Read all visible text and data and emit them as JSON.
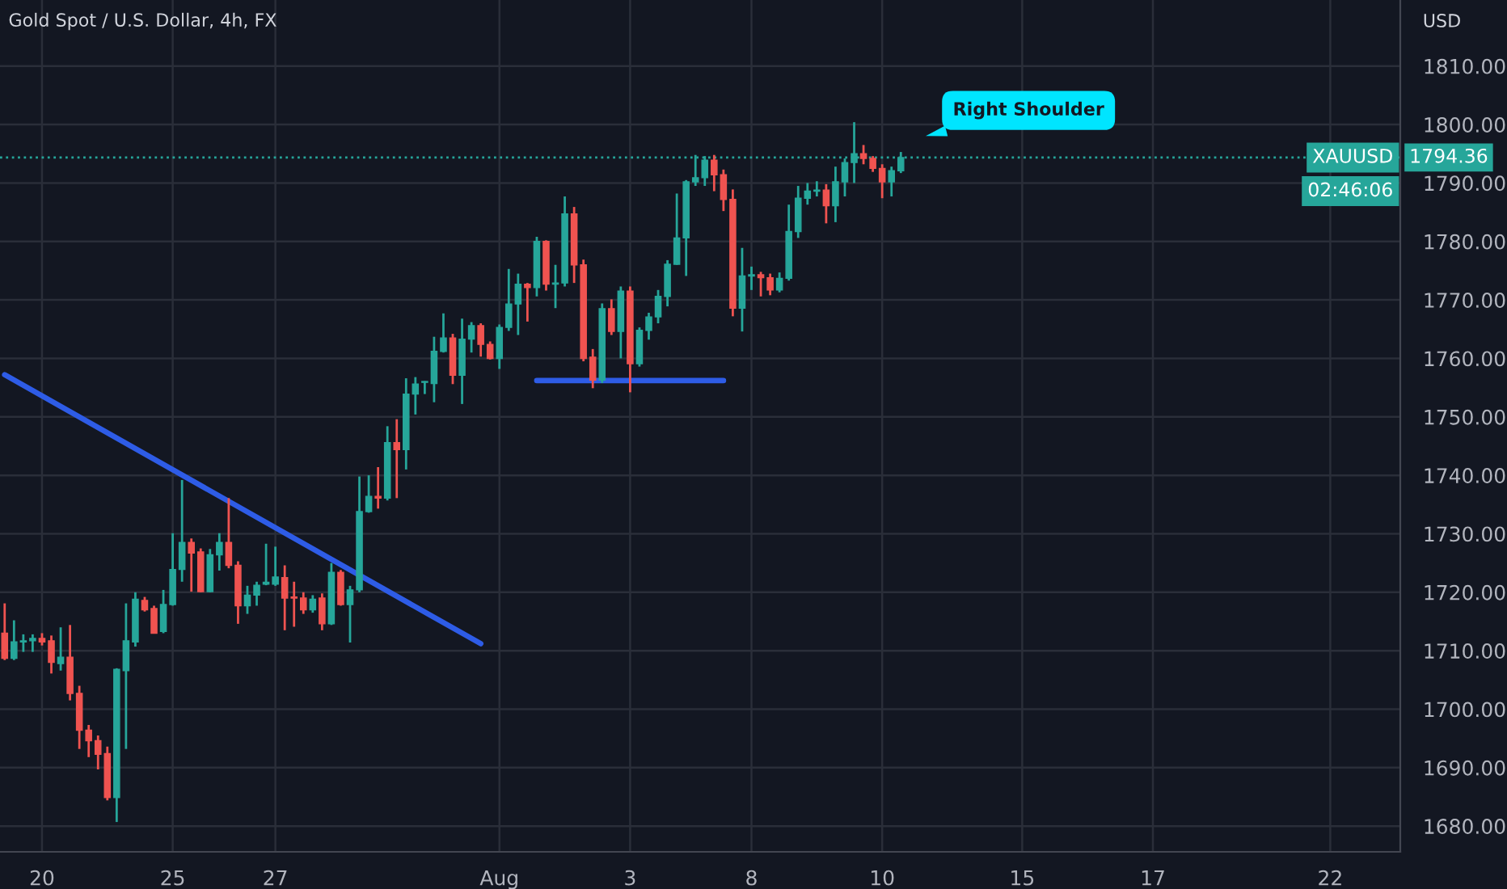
{
  "chart_data": {
    "type": "candlestick",
    "title": "Gold Spot / U.S. Dollar, 4h, FX",
    "ylabel": "USD",
    "categories": [
      null,
      null,
      null,
      null,
      "20",
      null,
      null,
      null,
      null,
      null,
      null,
      null,
      null,
      null,
      null,
      null,
      null,
      null,
      "25",
      null,
      null,
      null,
      null,
      null,
      null,
      null,
      null,
      null,
      null,
      "27",
      null,
      null,
      null,
      null,
      null,
      null,
      null,
      null,
      null,
      null,
      null,
      null,
      null,
      null,
      null,
      null,
      null,
      null,
      null,
      null,
      null,
      null,
      null,
      "Aug",
      null,
      null,
      null,
      null,
      null,
      null,
      null,
      null,
      null,
      null,
      null,
      null,
      null,
      "3",
      null,
      null,
      null,
      null,
      null,
      null,
      null,
      null,
      null,
      null,
      null,
      null,
      "8",
      null,
      null,
      null,
      null,
      null,
      null,
      null,
      null,
      null,
      null,
      null,
      null,
      null,
      "10",
      null,
      null,
      null,
      null,
      null,
      null,
      null,
      null,
      null,
      null,
      null,
      null,
      null,
      null,
      "15",
      null,
      null,
      null,
      null,
      null,
      null,
      null,
      null,
      null,
      null,
      null,
      null,
      null,
      "17",
      null,
      null,
      null,
      null,
      null,
      null,
      null,
      null,
      null,
      null,
      null,
      null,
      null,
      null,
      null,
      null,
      null,
      null,
      "22",
      null,
      null,
      null,
      null,
      null,
      null,
      null
    ],
    "ohlc": [
      [
        1713.0,
        1718.1,
        1708.4,
        1708.7
      ],
      [
        1708.7,
        1715.2,
        1708.4,
        1711.5
      ],
      [
        1711.5,
        1712.8,
        1709.8,
        1711.7
      ],
      [
        1711.7,
        1712.8,
        1709.8,
        1712.1
      ],
      [
        1712.1,
        1713.0,
        1710.9,
        1711.5
      ],
      [
        1711.7,
        1712.6,
        1706.1,
        1708.0
      ],
      [
        1707.8,
        1714.0,
        1706.6,
        1708.9
      ],
      [
        1708.9,
        1714.4,
        1701.5,
        1702.7
      ],
      [
        1702.7,
        1704.0,
        1693.2,
        1696.4
      ],
      [
        1696.4,
        1697.3,
        1691.8,
        1694.6
      ],
      [
        1694.6,
        1695.5,
        1689.7,
        1692.3
      ],
      [
        1692.4,
        1693.6,
        1684.4,
        1684.9
      ],
      [
        1684.9,
        1707.0,
        1680.7,
        1706.8
      ],
      [
        1706.6,
        1718.1,
        1693.2,
        1711.7
      ],
      [
        1711.5,
        1720.0,
        1710.7,
        1718.8
      ],
      [
        1718.6,
        1719.2,
        1716.7,
        1717.0
      ],
      [
        1717.2,
        1717.7,
        1713.0,
        1713.0
      ],
      [
        1713.3,
        1720.4,
        1713.0,
        1717.9
      ],
      [
        1717.9,
        1730.1,
        1717.7,
        1723.9
      ],
      [
        1723.9,
        1739.2,
        1721.8,
        1728.5
      ],
      [
        1728.5,
        1729.2,
        1720.1,
        1726.7
      ],
      [
        1726.9,
        1727.5,
        1720.0,
        1720.1
      ],
      [
        1720.1,
        1727.4,
        1720.0,
        1726.4
      ],
      [
        1726.4,
        1730.1,
        1723.7,
        1728.5
      ],
      [
        1728.5,
        1736.1,
        1724.1,
        1724.6
      ],
      [
        1724.6,
        1725.3,
        1714.6,
        1717.7
      ],
      [
        1717.7,
        1721.1,
        1716.3,
        1719.5
      ],
      [
        1719.5,
        1721.8,
        1717.7,
        1721.2
      ],
      [
        1721.4,
        1728.3,
        1721.2,
        1721.7
      ],
      [
        1721.4,
        1727.8,
        1721.1,
        1722.6
      ],
      [
        1722.5,
        1724.6,
        1713.5,
        1719.0
      ],
      [
        1719.2,
        1721.8,
        1714.1,
        1719.0
      ],
      [
        1719.0,
        1720.0,
        1716.3,
        1717.0
      ],
      [
        1717.0,
        1719.5,
        1716.5,
        1718.8
      ],
      [
        1719.0,
        1719.8,
        1713.5,
        1714.6
      ],
      [
        1714.6,
        1725.0,
        1714.4,
        1723.4
      ],
      [
        1723.4,
        1723.8,
        1717.7,
        1717.9
      ],
      [
        1717.9,
        1721.1,
        1711.4,
        1720.4
      ],
      [
        1720.4,
        1739.8,
        1720.0,
        1733.8
      ],
      [
        1733.8,
        1740.0,
        1733.6,
        1736.4
      ],
      [
        1736.4,
        1741.4,
        1734.3,
        1736.1
      ],
      [
        1736.1,
        1748.4,
        1735.7,
        1745.6
      ],
      [
        1745.6,
        1749.6,
        1736.1,
        1744.4
      ],
      [
        1744.4,
        1756.6,
        1741.0,
        1753.9
      ],
      [
        1753.9,
        1756.8,
        1750.4,
        1755.6
      ],
      [
        1755.9,
        1756.1,
        1753.9,
        1756.0
      ],
      [
        1755.7,
        1763.7,
        1752.5,
        1761.2
      ],
      [
        1761.2,
        1767.7,
        1761.0,
        1763.5
      ],
      [
        1763.5,
        1764.2,
        1755.6,
        1757.1
      ],
      [
        1757.1,
        1766.8,
        1752.2,
        1763.3
      ],
      [
        1763.3,
        1766.2,
        1761.0,
        1765.6
      ],
      [
        1765.6,
        1766.0,
        1760.3,
        1762.4
      ],
      [
        1762.4,
        1762.9,
        1759.8,
        1760.0
      ],
      [
        1760.0,
        1765.8,
        1758.2,
        1765.3
      ],
      [
        1765.3,
        1775.3,
        1764.7,
        1769.3
      ],
      [
        1769.3,
        1774.5,
        1764.0,
        1772.7
      ],
      [
        1772.7,
        1772.9,
        1766.3,
        1772.1
      ],
      [
        1772.1,
        1780.8,
        1770.6,
        1780.0
      ],
      [
        1780.0,
        1780.2,
        1771.6,
        1772.7
      ],
      [
        1772.7,
        1776.0,
        1768.6,
        1772.9
      ],
      [
        1772.9,
        1787.7,
        1772.3,
        1784.7
      ],
      [
        1784.7,
        1785.9,
        1772.9,
        1776.0
      ],
      [
        1776.0,
        1776.9,
        1759.5,
        1760.0
      ],
      [
        1760.2,
        1761.6,
        1754.9,
        1756.3
      ],
      [
        1756.3,
        1769.4,
        1755.8,
        1768.5
      ],
      [
        1768.5,
        1770.1,
        1764.0,
        1764.6
      ],
      [
        1764.6,
        1772.3,
        1760.0,
        1771.5
      ],
      [
        1771.5,
        1772.3,
        1754.2,
        1759.1
      ],
      [
        1759.1,
        1765.3,
        1758.6,
        1764.8
      ],
      [
        1764.8,
        1767.8,
        1763.2,
        1767.1
      ],
      [
        1767.1,
        1771.7,
        1766.0,
        1770.6
      ],
      [
        1770.6,
        1776.8,
        1768.9,
        1776.1
      ],
      [
        1776.1,
        1788.2,
        1776.0,
        1780.6
      ],
      [
        1780.6,
        1790.5,
        1774.1,
        1790.2
      ],
      [
        1790.2,
        1794.8,
        1789.5,
        1790.9
      ],
      [
        1790.9,
        1794.6,
        1789.5,
        1793.9
      ],
      [
        1793.9,
        1794.8,
        1788.6,
        1791.4
      ],
      [
        1791.4,
        1792.3,
        1785.2,
        1787.2
      ],
      [
        1787.2,
        1788.9,
        1767.2,
        1768.6
      ],
      [
        1768.6,
        1778.9,
        1764.6,
        1774.1
      ],
      [
        1774.1,
        1775.7,
        1771.7,
        1774.3
      ],
      [
        1774.3,
        1774.8,
        1770.6,
        1773.8
      ],
      [
        1773.8,
        1774.5,
        1770.8,
        1771.7
      ],
      [
        1771.7,
        1774.7,
        1771.3,
        1773.7
      ],
      [
        1773.7,
        1786.3,
        1773.3,
        1781.7
      ],
      [
        1781.7,
        1789.5,
        1780.6,
        1787.4
      ],
      [
        1787.4,
        1790.0,
        1786.3,
        1788.6
      ],
      [
        1788.6,
        1790.3,
        1787.7,
        1788.8
      ],
      [
        1788.8,
        1789.8,
        1783.1,
        1786.1
      ],
      [
        1786.1,
        1792.8,
        1783.3,
        1790.2
      ],
      [
        1790.2,
        1794.2,
        1787.7,
        1793.5
      ],
      [
        1793.5,
        1800.4,
        1790.0,
        1795.0
      ],
      [
        1795.0,
        1796.5,
        1793.2,
        1794.2
      ],
      [
        1794.2,
        1794.6,
        1791.9,
        1792.5
      ],
      [
        1792.5,
        1793.2,
        1787.4,
        1790.2
      ],
      [
        1790.2,
        1792.8,
        1787.7,
        1792.1
      ],
      [
        1792.1,
        1795.3,
        1791.7,
        1794.36
      ],
      null,
      null,
      null,
      null,
      null,
      null,
      null,
      null,
      null,
      null,
      null,
      null,
      null,
      null,
      null,
      null,
      null,
      null,
      null,
      null,
      null,
      null,
      null,
      null,
      null,
      null,
      null,
      null,
      null,
      null,
      null,
      null,
      null,
      null,
      null,
      null,
      null,
      null,
      null,
      null,
      null,
      null,
      null,
      null,
      null,
      null,
      null,
      null,
      null,
      null,
      null,
      null,
      null
    ],
    "colors": [
      "#ef5350",
      "#26a69a",
      "#26a69a",
      "#26a69a",
      "#ef5350",
      "#ef5350",
      "#26a69a",
      "#ef5350",
      "#ef5350",
      "#ef5350",
      "#ef5350",
      "#ef5350",
      "#26a69a",
      "#26a69a",
      "#26a69a",
      "#ef5350",
      "#ef5350",
      "#26a69a",
      "#26a69a",
      "#26a69a",
      "#ef5350",
      "#ef5350",
      "#26a69a",
      "#26a69a",
      "#ef5350",
      "#ef5350",
      "#26a69a",
      "#26a69a",
      "#26a69a",
      "#26a69a",
      "#ef5350",
      "#ef5350",
      "#ef5350",
      "#26a69a",
      "#ef5350",
      "#26a69a",
      "#ef5350",
      "#26a69a",
      "#26a69a",
      "#26a69a",
      "#ef5350",
      "#26a69a",
      "#ef5350",
      "#26a69a",
      "#26a69a",
      "#26a69a",
      "#26a69a",
      "#26a69a",
      "#ef5350",
      "#26a69a",
      "#26a69a",
      "#ef5350",
      "#ef5350",
      "#26a69a",
      "#26a69a",
      "#26a69a",
      "#ef5350",
      "#26a69a",
      "#ef5350",
      "#26a69a",
      "#26a69a",
      "#ef5350",
      "#ef5350",
      "#ef5350",
      "#26a69a",
      "#ef5350",
      "#26a69a",
      "#ef5350",
      "#26a69a",
      "#26a69a",
      "#26a69a",
      "#26a69a",
      "#26a69a",
      "#26a69a",
      "#26a69a",
      "#26a69a",
      "#ef5350",
      "#ef5350",
      "#ef5350",
      "#26a69a",
      "#26a69a",
      "#ef5350",
      "#ef5350",
      "#26a69a",
      "#26a69a",
      "#26a69a",
      "#26a69a",
      "#26a69a",
      "#ef5350",
      "#26a69a",
      "#26a69a",
      "#26a69a",
      "#ef5350",
      "#ef5350",
      "#ef5350",
      "#26a69a",
      "#26a69a",
      null,
      null,
      null,
      null,
      null,
      null,
      null,
      null,
      null,
      null,
      null,
      null,
      null,
      null,
      null,
      null,
      null,
      null,
      null,
      null,
      null,
      null,
      null,
      null,
      null,
      null,
      null,
      null,
      null,
      null,
      null,
      null,
      null,
      null,
      null,
      null,
      null,
      null,
      null,
      null,
      null,
      null,
      null,
      null,
      null,
      null,
      null,
      null,
      null,
      null,
      null,
      null,
      null
    ],
    "series": [
      {
        "type": "line",
        "color": "#2e5ce6",
        "values": [
          1757.2,
          null,
          null,
          null,
          null,
          null,
          null,
          null,
          null,
          null,
          null,
          null,
          null,
          null,
          null,
          null,
          null,
          null,
          null,
          null,
          null,
          null,
          null,
          null,
          null,
          null,
          null,
          null,
          null,
          null,
          null,
          null,
          null,
          null,
          null,
          null,
          null,
          null,
          null,
          null,
          null,
          null,
          null,
          null,
          null,
          null,
          null,
          null,
          null,
          null,
          null,
          1711.2,
          null,
          null,
          null,
          null,
          null,
          null,
          null,
          null,
          null,
          null,
          null,
          null,
          null,
          null,
          null,
          null,
          null,
          null,
          null,
          null,
          null,
          null,
          null,
          null,
          null,
          null,
          null,
          null,
          null,
          null,
          null,
          null,
          null,
          null,
          null,
          null,
          null,
          null,
          null,
          null,
          null,
          null,
          null,
          null,
          null,
          null,
          null,
          null,
          null,
          null,
          null,
          null,
          null,
          null,
          null,
          null,
          null,
          null,
          null,
          null,
          null,
          null,
          null,
          null,
          null,
          null,
          null,
          null,
          null,
          null,
          null,
          null,
          null,
          null,
          null,
          null,
          null,
          null,
          null,
          null,
          null,
          null,
          null,
          null,
          null,
          null,
          null,
          null,
          null,
          null,
          null,
          null,
          null,
          null,
          null,
          null,
          null,
          null
        ]
      },
      {
        "type": "line",
        "color": "#2e5ce6",
        "values": [
          null,
          null,
          null,
          null,
          null,
          null,
          null,
          null,
          null,
          null,
          null,
          null,
          null,
          null,
          null,
          null,
          null,
          null,
          null,
          null,
          null,
          null,
          null,
          null,
          null,
          null,
          null,
          null,
          null,
          null,
          null,
          null,
          null,
          null,
          null,
          null,
          null,
          null,
          null,
          null,
          null,
          null,
          null,
          null,
          null,
          null,
          null,
          null,
          null,
          null,
          null,
          null,
          null,
          null,
          null,
          null,
          null,
          1756.2,
          null,
          null,
          null,
          null,
          null,
          null,
          null,
          null,
          null,
          null,
          null,
          null,
          null,
          null,
          null,
          null,
          null,
          null,
          null,
          1756.2,
          null,
          null,
          null,
          null,
          null,
          null,
          null,
          null,
          null,
          null,
          null,
          null,
          null,
          null,
          null,
          null,
          null,
          null,
          null,
          null,
          null,
          null,
          null,
          null,
          null,
          null,
          null,
          null,
          null,
          null,
          null,
          null,
          null,
          null,
          null,
          null,
          null,
          null,
          null,
          null,
          null,
          null,
          null,
          null,
          null,
          null,
          null,
          null,
          null,
          null,
          null,
          null,
          null,
          null,
          null,
          null,
          null,
          null,
          null,
          null,
          null,
          null,
          null,
          null,
          null,
          null,
          null,
          null,
          null,
          null,
          null,
          null
        ]
      }
    ],
    "ylim": [
      1675.6,
      1821.3
    ],
    "yticks": [
      {
        "value": 1680,
        "label": "1680.00"
      },
      {
        "value": 1690,
        "label": "1690.00"
      },
      {
        "value": 1700,
        "label": "1700.00"
      },
      {
        "value": 1710,
        "label": "1710.00"
      },
      {
        "value": 1720,
        "label": "1720.00"
      },
      {
        "value": 1730,
        "label": "1730.00"
      },
      {
        "value": 1740,
        "label": "1740.00"
      },
      {
        "value": 1750,
        "label": "1750.00"
      },
      {
        "value": 1760,
        "label": "1760.00"
      },
      {
        "value": 1770,
        "label": "1770.00"
      },
      {
        "value": 1780,
        "label": "1780.00"
      },
      {
        "value": 1790,
        "label": "1790.00"
      },
      {
        "value": 1800,
        "label": "1800.00"
      },
      {
        "value": 1810,
        "label": "1810.00"
      }
    ],
    "ref_lines": [
      {
        "axis": "y",
        "value": 1794.36,
        "label": "1794.36",
        "color": "#26a69a",
        "line_style": "dotted"
      }
    ],
    "annotations": [
      "Right Shoulder",
      "XAUUSD",
      "02:46:06"
    ],
    "grid": true
  }
}
